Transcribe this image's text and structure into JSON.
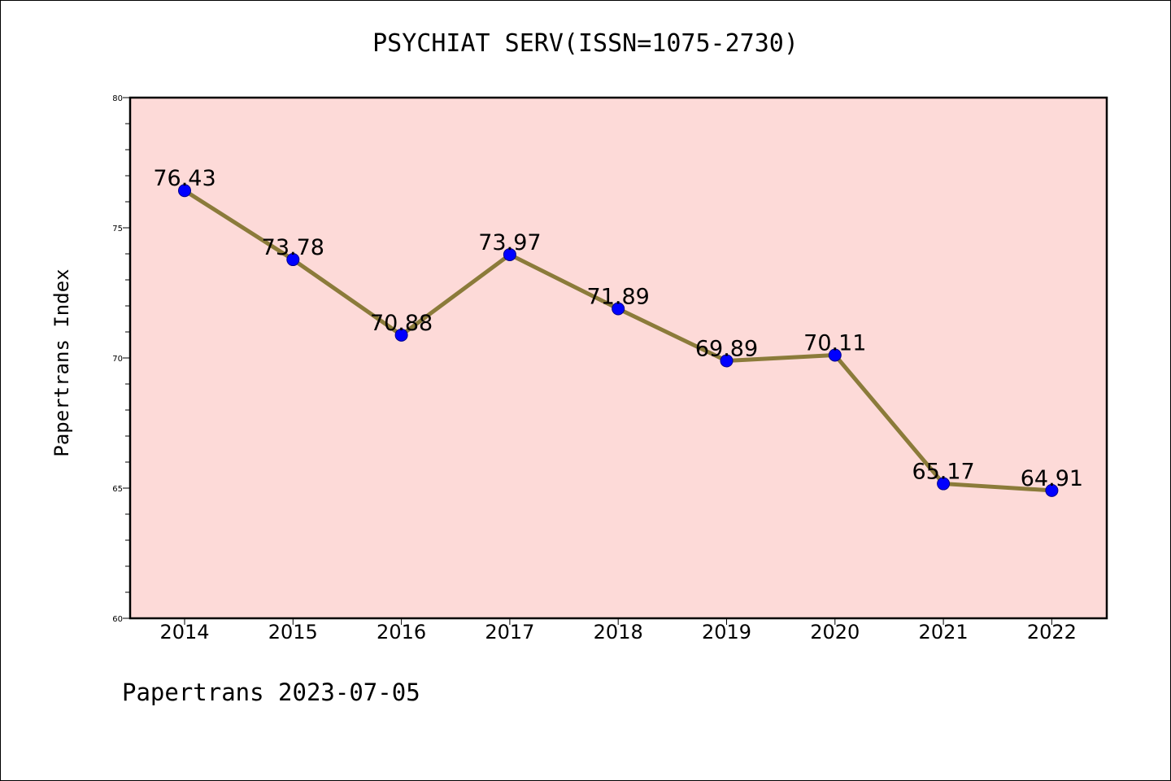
{
  "chart_data": {
    "type": "line",
    "title": "PSYCHIAT SERV(ISSN=1075-2730)",
    "ylabel": "Papertrans Index",
    "xlabel": "",
    "x": [
      "2014",
      "2015",
      "2016",
      "2017",
      "2018",
      "2019",
      "2020",
      "2021",
      "2022"
    ],
    "values": [
      76.43,
      73.78,
      70.88,
      73.97,
      71.89,
      69.89,
      70.11,
      65.17,
      64.91
    ],
    "data_labels": [
      "76.43",
      "73.78",
      "70.88",
      "73.97",
      "71.89",
      "69.89",
      "70.11",
      "65.17",
      "64.91"
    ],
    "ylim": [
      60,
      80
    ],
    "yticks": [
      60,
      65,
      70,
      75,
      80
    ],
    "grid": false,
    "colors": {
      "background": "#fddad8",
      "line": "#8b7b3a",
      "marker": "#0000ff"
    }
  },
  "footer": "Papertrans 2023-07-05"
}
